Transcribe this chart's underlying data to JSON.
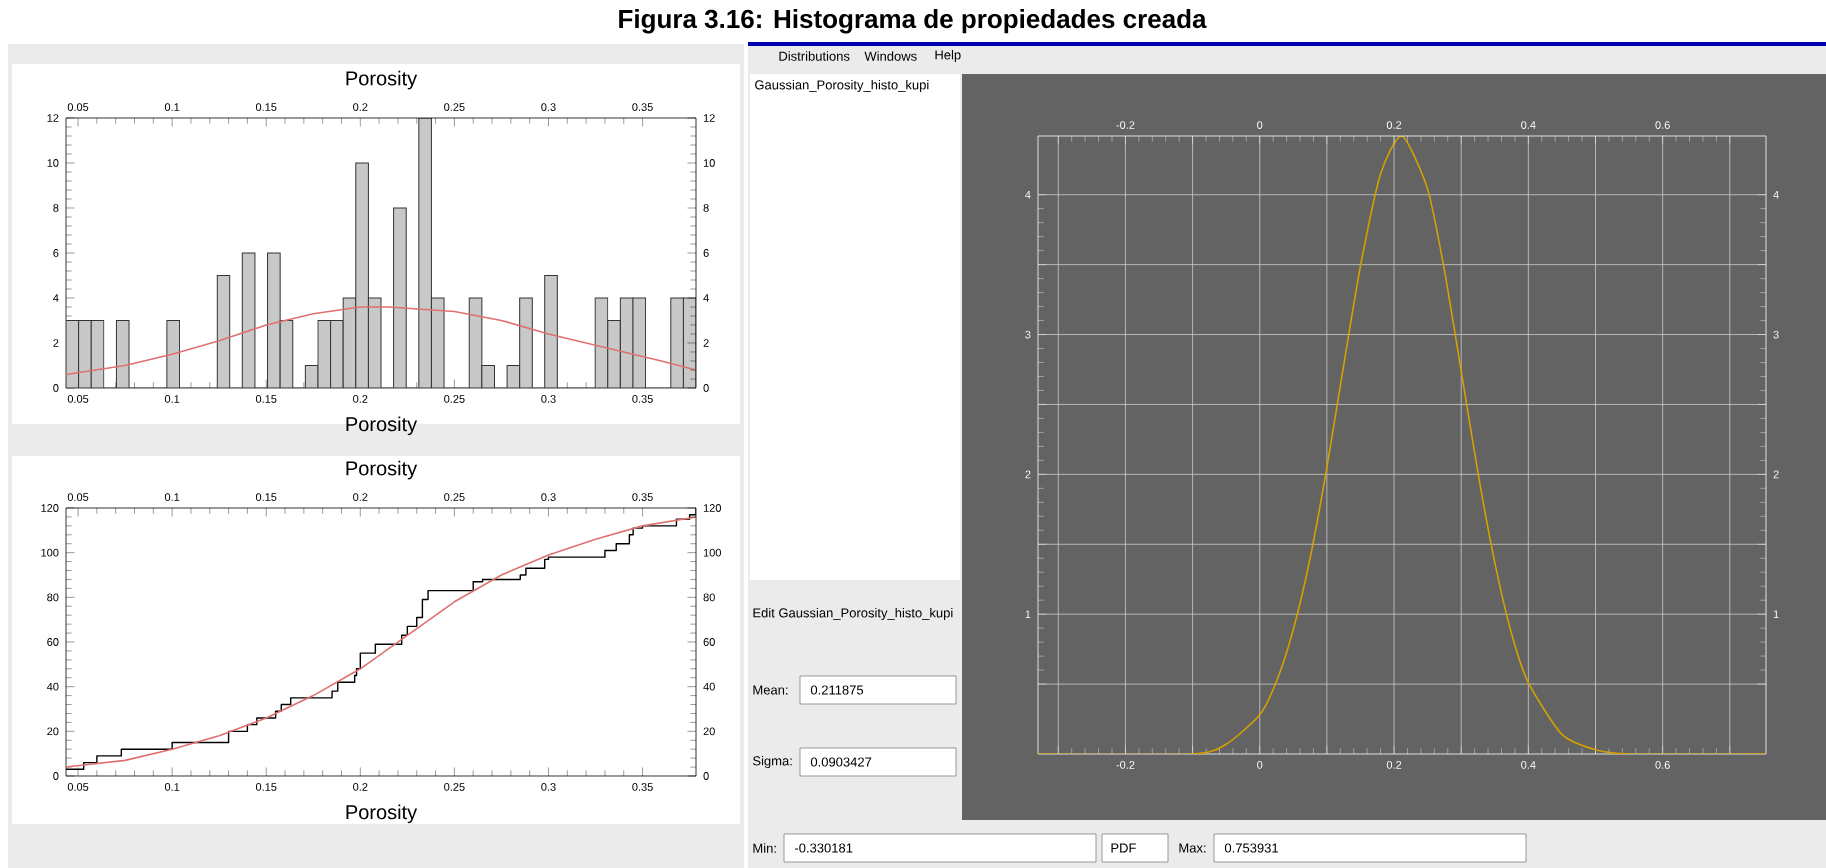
{
  "chart_data": [
    {
      "type": "histogram",
      "title": "Figura 3.16: Histograma de propiedades creada",
      "xlabel": "Porosity",
      "x2label": "Porosity",
      "color": "#c8c8c8",
      "bins": [
        0.0436,
        0.0503,
        0.057,
        0.0637,
        0.0704,
        0.0771,
        0.0838,
        0.0905,
        0.0972,
        0.1039,
        0.1106,
        0.1173,
        0.124,
        0.1306,
        0.1373,
        0.144,
        0.1507,
        0.1574,
        0.1641,
        0.1708,
        0.1775,
        0.1842,
        0.1909,
        0.1976,
        0.2043,
        0.211,
        0.2177,
        0.2244,
        0.2311,
        0.2378,
        0.2445,
        0.2512,
        0.2579,
        0.2646,
        0.2713,
        0.278,
        0.2847,
        0.2914,
        0.298,
        0.3047,
        0.3114,
        0.3181,
        0.3248,
        0.3315,
        0.3382,
        0.3449,
        0.3516,
        0.3583,
        0.365,
        0.3717,
        0.3784
      ],
      "values": [
        3,
        3,
        3,
        0,
        3,
        0,
        0,
        0,
        3,
        0,
        0,
        0,
        5,
        0,
        6,
        0,
        6,
        3,
        0,
        1,
        3,
        3,
        4,
        10,
        4,
        0,
        8,
        0,
        12,
        4,
        0,
        0,
        4,
        1,
        0,
        1,
        4,
        0,
        5,
        0,
        0,
        0,
        4,
        3,
        4,
        4,
        0,
        0,
        4,
        4
      ],
      "series": [
        {
          "type": "line",
          "color": "#e07070",
          "x": [
            0.0436,
            0.075,
            0.1,
            0.125,
            0.15,
            0.175,
            0.2,
            0.215,
            0.25,
            0.275,
            0.3,
            0.325,
            0.35,
            0.36,
            0.3784
          ],
          "values": [
            0.6,
            1.0,
            1.5,
            2.1,
            2.8,
            3.3,
            3.6,
            3.6,
            3.4,
            3.0,
            2.4,
            1.9,
            1.4,
            1.2,
            0.8
          ]
        }
      ],
      "xlim": [
        0.0436,
        0.3784
      ],
      "xticks": [
        0.05,
        0.1,
        0.15,
        0.2,
        0.25,
        0.3,
        0.35
      ],
      "x2lim": [
        0.0436,
        0.3784
      ],
      "x2ticks": [
        0.05,
        0.1,
        0.15,
        0.2,
        0.25,
        0.3,
        0.35
      ],
      "ylim": [
        0,
        12
      ],
      "yticks": [
        0,
        2,
        4,
        6,
        8,
        10,
        12
      ],
      "y2lim": [
        0,
        12
      ],
      "y2ticks": [
        0,
        2,
        4,
        6,
        8,
        10,
        12
      ]
    },
    {
      "type": "step",
      "xlabel": "Porosity",
      "x2label": "Porosity",
      "series": [
        {
          "type": "step",
          "color": "#000000",
          "x": [
            0.0436,
            0.053,
            0.06,
            0.073,
            0.1,
            0.13,
            0.14,
            0.145,
            0.155,
            0.158,
            0.163,
            0.185,
            0.188,
            0.197,
            0.198,
            0.2,
            0.208,
            0.222,
            0.225,
            0.23,
            0.233,
            0.236,
            0.26,
            0.265,
            0.285,
            0.288,
            0.298,
            0.3,
            0.33,
            0.336,
            0.343,
            0.345,
            0.35,
            0.368,
            0.375,
            0.3784
          ],
          "values": [
            3,
            6,
            9,
            12,
            15,
            20,
            23,
            26,
            29,
            32,
            35,
            38,
            42,
            45,
            48,
            55,
            59,
            63,
            67,
            71,
            79,
            83,
            87,
            88,
            90,
            93,
            97,
            98,
            101,
            104,
            108,
            111,
            112,
            115,
            117,
            120
          ]
        },
        {
          "type": "line",
          "color": "#e07070",
          "x": [
            0.0436,
            0.075,
            0.1,
            0.125,
            0.15,
            0.175,
            0.2,
            0.225,
            0.25,
            0.275,
            0.3,
            0.325,
            0.35,
            0.3784
          ],
          "values": [
            4,
            7,
            12,
            18,
            26,
            36,
            48,
            63,
            78,
            90,
            99,
            106,
            112,
            116
          ]
        }
      ],
      "xlim": [
        0.0436,
        0.3784
      ],
      "xticks": [
        0.05,
        0.1,
        0.15,
        0.2,
        0.25,
        0.3,
        0.35
      ],
      "x2lim": [
        0.0436,
        0.3784
      ],
      "x2ticks": [
        0.05,
        0.1,
        0.15,
        0.2,
        0.25,
        0.3,
        0.35
      ],
      "ylim": [
        0,
        120
      ],
      "yticks": [
        0,
        20,
        40,
        60,
        80,
        100,
        120
      ],
      "y2lim": [
        0,
        120
      ],
      "y2ticks": [
        0,
        20,
        40,
        60,
        80,
        100,
        120
      ]
    },
    {
      "type": "line",
      "color": "#d4a000",
      "grid": true,
      "x": [
        -0.330181,
        -0.1,
        -0.05,
        0,
        0.025,
        0.05,
        0.075,
        0.1,
        0.125,
        0.15,
        0.18,
        0.211875,
        0.25,
        0.275,
        0.3,
        0.325,
        0.35,
        0.375,
        0.4,
        0.45,
        0.5,
        0.55,
        0.753931
      ],
      "values": [
        0,
        0,
        0.07,
        0.28,
        0.52,
        0.89,
        1.4,
        2.05,
        2.78,
        3.49,
        4.15,
        4.42,
        4.04,
        3.46,
        2.74,
        2.01,
        1.37,
        0.86,
        0.51,
        0.14,
        0.03,
        0,
        0
      ],
      "xlim": [
        -0.330181,
        0.753931
      ],
      "xticks": [
        {
          "value": -0.3,
          "label": null
        },
        -0.2,
        {
          "value": -0.1,
          "label": null
        },
        0,
        {
          "value": 0.1,
          "label": null
        },
        0.2,
        {
          "value": 0.3,
          "label": null
        },
        0.4,
        {
          "value": 0.5,
          "label": null
        },
        0.6,
        {
          "value": 0.7,
          "label": null
        }
      ],
      "x2lim": [
        -0.330181,
        0.753931
      ],
      "x2ticks": [
        {
          "value": -0.3,
          "label": null
        },
        -0.2,
        {
          "value": -0.1,
          "label": null
        },
        0,
        {
          "value": 0.1,
          "label": null
        },
        0.2,
        {
          "value": 0.3,
          "label": null
        },
        0.4,
        {
          "value": 0.5,
          "label": null
        },
        0.6,
        {
          "value": 0.7,
          "label": null
        }
      ],
      "ylim": [
        0,
        4.42
      ],
      "yticks": [
        {
          "value": 0.5,
          "label": null
        },
        1,
        {
          "value": 1.5,
          "label": null
        },
        2,
        {
          "value": 2.5,
          "label": null
        },
        3,
        {
          "value": 3.5,
          "label": null
        },
        4
      ],
      "y2lim": [
        0,
        4.42
      ],
      "y2ticks": [
        {
          "value": 0.5,
          "label": null
        },
        1,
        {
          "value": 1.5,
          "label": null
        },
        2,
        {
          "value": 2.5,
          "label": null
        },
        3,
        {
          "value": 3.5,
          "label": null
        },
        4
      ],
      "annotations": [
        "Distributions",
        "Windows",
        "Help",
        "Gaussian_Porosity_histo_kupi",
        "Edit Gaussian_Porosity_histo_kupi",
        "Mean:",
        "0.211875",
        "Sigma:",
        "0.0903427",
        "Min:",
        "-0.330181",
        "PDF",
        "Max:",
        "0.753931"
      ]
    }
  ]
}
